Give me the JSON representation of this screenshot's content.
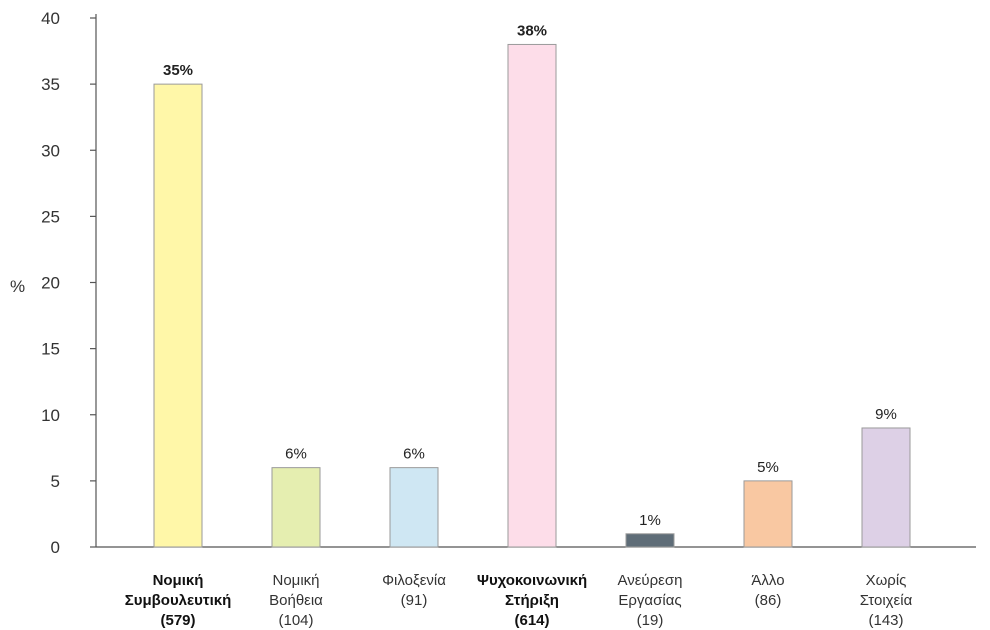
{
  "chart_data": {
    "type": "bar",
    "title": "",
    "xlabel": "",
    "ylabel": "%",
    "ylim": [
      0,
      40
    ],
    "yticks": [
      0,
      5,
      10,
      15,
      20,
      25,
      30,
      35,
      40
    ],
    "grid": false,
    "categories": [
      "Νομική Συμβουλευτική (579)",
      "Νομική Βοήθεια (104)",
      "Φιλοξενία (91)",
      "Ψυχοκοινωνική Στήριξη (614)",
      "Ανεύρεση Εργασίας (19)",
      "Άλλο (86)",
      "Χωρίς Στοιχεία (143)"
    ],
    "category_lines": [
      [
        "Νομική",
        "Συμβουλευτική",
        "(579)"
      ],
      [
        "Νομική",
        "Βοήθεια",
        "(104)"
      ],
      [
        "Φιλοξενία",
        "(91)"
      ],
      [
        "Ψυχοκοινωνική",
        "Στήριξη",
        "(614)"
      ],
      [
        "Ανεύρεση",
        "Εργασίας",
        "(19)"
      ],
      [
        "Άλλο",
        "(86)"
      ],
      [
        "Χωρίς",
        "Στοιχεία",
        "(143)"
      ]
    ],
    "values": [
      35,
      6,
      6,
      38,
      1,
      5,
      9
    ],
    "value_labels": [
      "35%",
      "6%",
      "6%",
      "38%",
      "1%",
      "5%",
      "9%"
    ],
    "bold_categories": [
      true,
      false,
      false,
      true,
      false,
      false,
      false
    ],
    "colors": [
      "#fff7a8",
      "#e5eeb0",
      "#cfe7f3",
      "#fddde9",
      "#5f6d78",
      "#f9c8a2",
      "#ddd0e6"
    ]
  }
}
